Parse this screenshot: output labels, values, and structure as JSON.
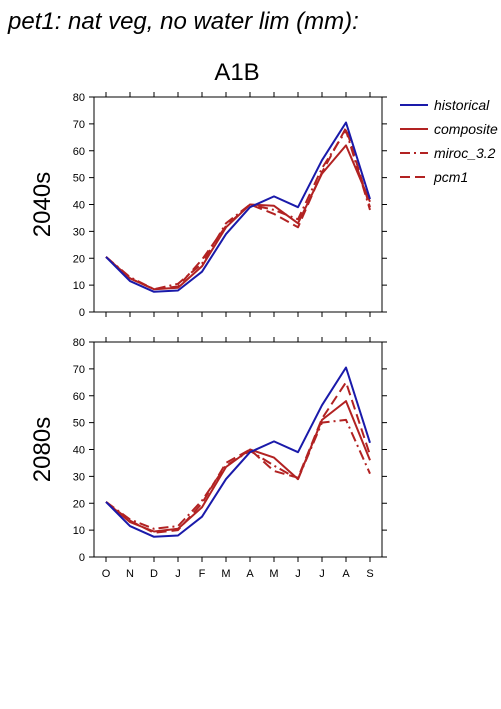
{
  "page_title": "pet1: nat veg, no water lim (mm):",
  "figure_title": "A1B",
  "colors": {
    "historical": "#1a1aaa",
    "model": "#b22222"
  },
  "legend": {
    "items": [
      {
        "name": "historical",
        "style": "solid",
        "color": "#1a1aaa"
      },
      {
        "name": "composite",
        "style": "solid",
        "color": "#b22222"
      },
      {
        "name": "miroc_3.2",
        "style": "dashdot",
        "color": "#b22222"
      },
      {
        "name": "pcm1",
        "style": "dashed",
        "color": "#b22222"
      }
    ]
  },
  "chart_data": [
    {
      "type": "line",
      "panel_label": "2040s",
      "categories": [
        "O",
        "N",
        "D",
        "J",
        "F",
        "M",
        "A",
        "M",
        "J",
        "J",
        "A",
        "S"
      ],
      "ylim": [
        0,
        80
      ],
      "yticks": [
        0,
        10,
        20,
        30,
        40,
        50,
        60,
        70,
        80
      ],
      "show_x_tick_labels": false,
      "series": [
        {
          "name": "historical",
          "values": [
            20.5,
            11.5,
            7.5,
            8,
            15,
            29,
            39,
            43,
            39,
            56.5,
            70.5,
            42
          ]
        },
        {
          "name": "composite",
          "values": [
            20.5,
            12.5,
            8.5,
            9,
            17,
            31.5,
            40,
            39.5,
            33,
            51.5,
            62,
            41
          ]
        },
        {
          "name": "miroc_3.2",
          "values": [
            20.5,
            13,
            8.5,
            10.5,
            18,
            33,
            40,
            38,
            34.5,
            53.5,
            67.5,
            38
          ]
        },
        {
          "name": "pcm1",
          "values": [
            20.5,
            12.5,
            8.5,
            9.5,
            19.5,
            32,
            40,
            36.5,
            31.5,
            52,
            68.5,
            39
          ]
        }
      ]
    },
    {
      "type": "line",
      "panel_label": "2080s",
      "categories": [
        "O",
        "N",
        "D",
        "J",
        "F",
        "M",
        "A",
        "M",
        "J",
        "J",
        "A",
        "S"
      ],
      "ylim": [
        0,
        80
      ],
      "yticks": [
        0,
        10,
        20,
        30,
        40,
        50,
        60,
        70,
        80
      ],
      "show_x_tick_labels": true,
      "series": [
        {
          "name": "historical",
          "values": [
            20.5,
            11.5,
            7.5,
            8,
            15,
            29,
            39,
            43,
            39,
            56.5,
            70.5,
            42.5
          ]
        },
        {
          "name": "composite",
          "values": [
            20.5,
            13,
            9.5,
            10.5,
            18.5,
            33.5,
            40,
            37,
            29,
            51,
            58,
            36
          ]
        },
        {
          "name": "miroc_3.2",
          "values": [
            20.5,
            14,
            10.5,
            11.5,
            21,
            34,
            39.5,
            34,
            29,
            50,
            51,
            31
          ]
        },
        {
          "name": "pcm1",
          "values": [
            20.5,
            13.5,
            9,
            10,
            20,
            35,
            40,
            32,
            29.5,
            51.5,
            65,
            38
          ]
        }
      ]
    }
  ]
}
